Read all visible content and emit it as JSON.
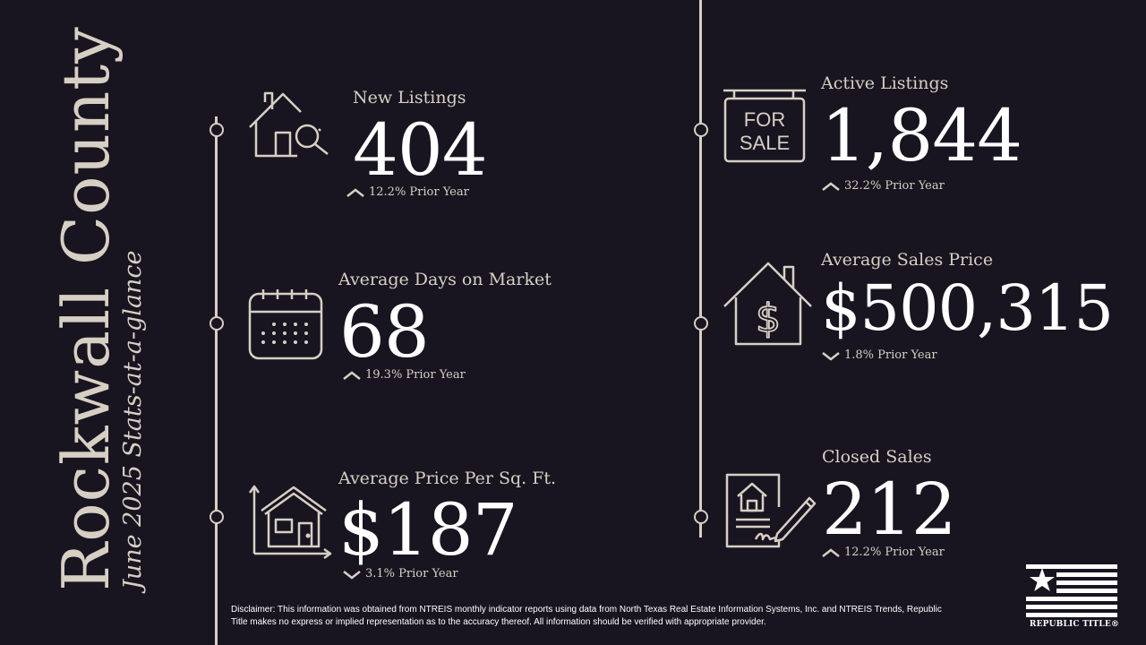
{
  "title": {
    "county": "Rockwall County",
    "subtitle": "June 2025 Stats-at-a-glance"
  },
  "stats": {
    "new_listings": {
      "label": "New Listings",
      "value": "404",
      "direction": "up",
      "change": "12.2% Prior Year",
      "icon": "house-magnifier-icon"
    },
    "avg_days": {
      "label": "Average Days on Market",
      "value": "68",
      "direction": "up",
      "change": "19.3% Prior Year",
      "icon": "calendar-icon"
    },
    "price_sqft": {
      "label": "Average Price Per Sq. Ft.",
      "value": "$187",
      "direction": "down",
      "change": "3.1% Prior Year",
      "icon": "house-measure-icon"
    },
    "active_listings": {
      "label": "Active Listings",
      "value": "1,844",
      "direction": "up",
      "change": "32.2% Prior Year",
      "icon": "for-sale-sign-icon",
      "sign_text": [
        "FOR",
        "SALE"
      ]
    },
    "avg_price": {
      "label": "Average Sales Price",
      "value": "$500,315",
      "direction": "down",
      "change": "1.8% Prior Year",
      "icon": "house-dollar-icon"
    },
    "closed_sales": {
      "label": "Closed Sales",
      "value": "212",
      "direction": "up",
      "change": "12.2% Prior Year",
      "icon": "signed-contract-icon"
    }
  },
  "disclaimer": "Disclaimer: This information was obtained from NTREIS monthly indicator reports using data from North Texas Real Estate Information Systems, Inc. and NTREIS Trends, Republic Title makes no express or implied representation as to the accuracy thereof. All information should be verified with appropriate provider.",
  "logo": {
    "text": "REPUBLIC TITLE®",
    "icon": "flag-star-icon"
  },
  "colors": {
    "background": "#181520",
    "accent": "#d8cfc4",
    "text": "#ffffff"
  }
}
